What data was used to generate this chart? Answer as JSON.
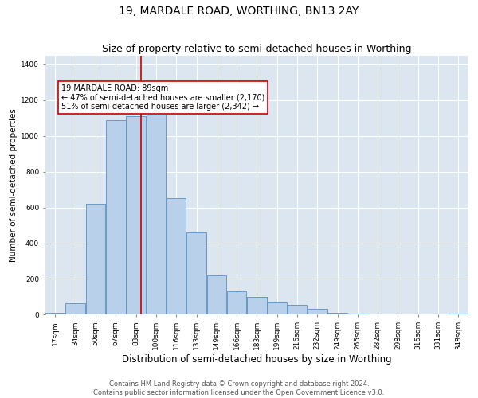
{
  "title": "19, MARDALE ROAD, WORTHING, BN13 2AY",
  "subtitle": "Size of property relative to semi-detached houses in Worthing",
  "xlabel": "Distribution of semi-detached houses by size in Worthing",
  "ylabel": "Number of semi-detached properties",
  "bin_labels": [
    "17sqm",
    "34sqm",
    "50sqm",
    "67sqm",
    "83sqm",
    "100sqm",
    "116sqm",
    "133sqm",
    "149sqm",
    "166sqm",
    "183sqm",
    "199sqm",
    "216sqm",
    "232sqm",
    "249sqm",
    "265sqm",
    "282sqm",
    "298sqm",
    "315sqm",
    "331sqm",
    "348sqm"
  ],
  "bar_centers": [
    0,
    1,
    2,
    3,
    4,
    5,
    6,
    7,
    8,
    9,
    10,
    11,
    12,
    13,
    14,
    15,
    16,
    17,
    18,
    19,
    20
  ],
  "bar_heights": [
    10,
    65,
    620,
    1090,
    1110,
    1120,
    650,
    460,
    220,
    130,
    100,
    70,
    55,
    35,
    10,
    5,
    3,
    2,
    2,
    2,
    5
  ],
  "bar_color": "#b8d0ea",
  "bar_edge_color": "#5a8fc2",
  "property_size_idx": 4.24,
  "vline_color": "#cc0000",
  "annotation_text": "19 MARDALE ROAD: 89sqm\n← 47% of semi-detached houses are smaller (2,170)\n51% of semi-detached houses are larger (2,342) →",
  "annotation_box_color": "#ffffff",
  "annotation_box_edge_color": "#cc0000",
  "ylim": [
    0,
    1450
  ],
  "bg_color": "#dce6f0",
  "grid_color": "#ffffff",
  "footer_line1": "Contains HM Land Registry data © Crown copyright and database right 2024.",
  "footer_line2": "Contains public sector information licensed under the Open Government Licence v3.0.",
  "title_fontsize": 10,
  "subtitle_fontsize": 9,
  "xlabel_fontsize": 8.5,
  "ylabel_fontsize": 7.5,
  "tick_fontsize": 6.5,
  "annotation_fontsize": 7.0,
  "footer_fontsize": 6.0,
  "yticks": [
    0,
    200,
    400,
    600,
    800,
    1000,
    1200,
    1400
  ]
}
